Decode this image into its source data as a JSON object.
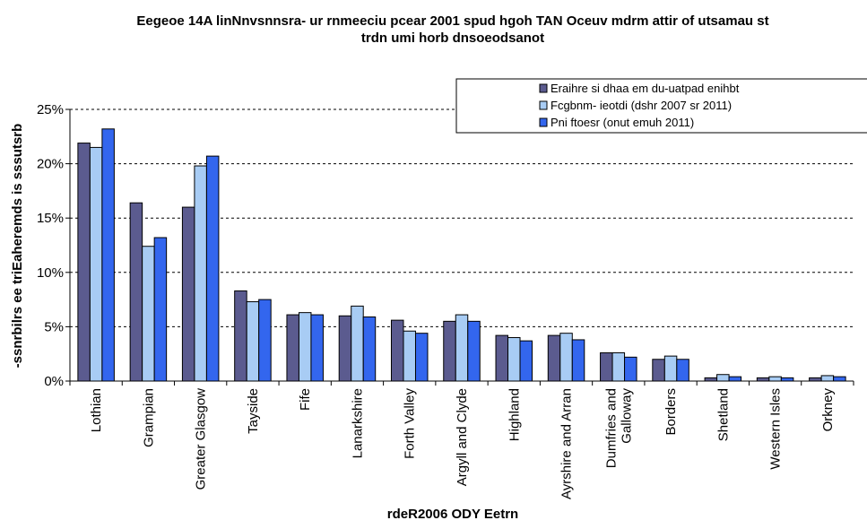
{
  "chart_data": {
    "type": "bar",
    "title_lines": [
      "Eegeoe 14A linNnvsnnsra- ur rnmeeciu pcear 2001 spud hgoh TAN Oceuv mdrm attir of utsamau st",
      "trdn umi horb dnsoeodsanot"
    ],
    "xlabel": "rdeR2006 ODY Eetrn",
    "ylabel": "-ssnrbilrs ee triEaheremds is sssutsrb",
    "ylim": [
      0,
      25
    ],
    "yticks": [
      "0%",
      "5%",
      "10%",
      "15%",
      "20%",
      "25%"
    ],
    "grid": true,
    "legend_position": "top-right",
    "categories": [
      "Lothian",
      "Grampian",
      "Greater Glasgow",
      "Tayside",
      "Fife",
      "Lanarkshire",
      "Forth Valley",
      "Argyll and Clyde",
      "Highland",
      "Ayrshire and Arran",
      "Dumfries and Galloway",
      "Borders",
      "Shetland",
      "Western Isles",
      "Orkney"
    ],
    "series": [
      {
        "name": "Eraihre si dhaa em du-uatpad enihbt",
        "color": "#5b5b8f",
        "values": [
          21.9,
          16.4,
          16.0,
          8.3,
          6.1,
          6.0,
          5.6,
          5.5,
          4.2,
          4.2,
          2.6,
          2.0,
          0.3,
          0.3,
          0.3
        ]
      },
      {
        "name": "Fcgbnm- ieotdi (dshr 2007 sr 2011)",
        "color": "#a8ccf4",
        "values": [
          21.5,
          12.4,
          19.8,
          7.3,
          6.3,
          6.9,
          4.6,
          6.1,
          4.0,
          4.4,
          2.6,
          2.3,
          0.6,
          0.4,
          0.5
        ]
      },
      {
        "name": "Pni ftoesr (onut emuh 2011)",
        "color": "#3366ee",
        "values": [
          23.2,
          13.2,
          20.7,
          7.5,
          6.1,
          5.9,
          4.4,
          5.5,
          3.7,
          3.8,
          2.2,
          2.0,
          0.4,
          0.3,
          0.4
        ]
      }
    ]
  }
}
